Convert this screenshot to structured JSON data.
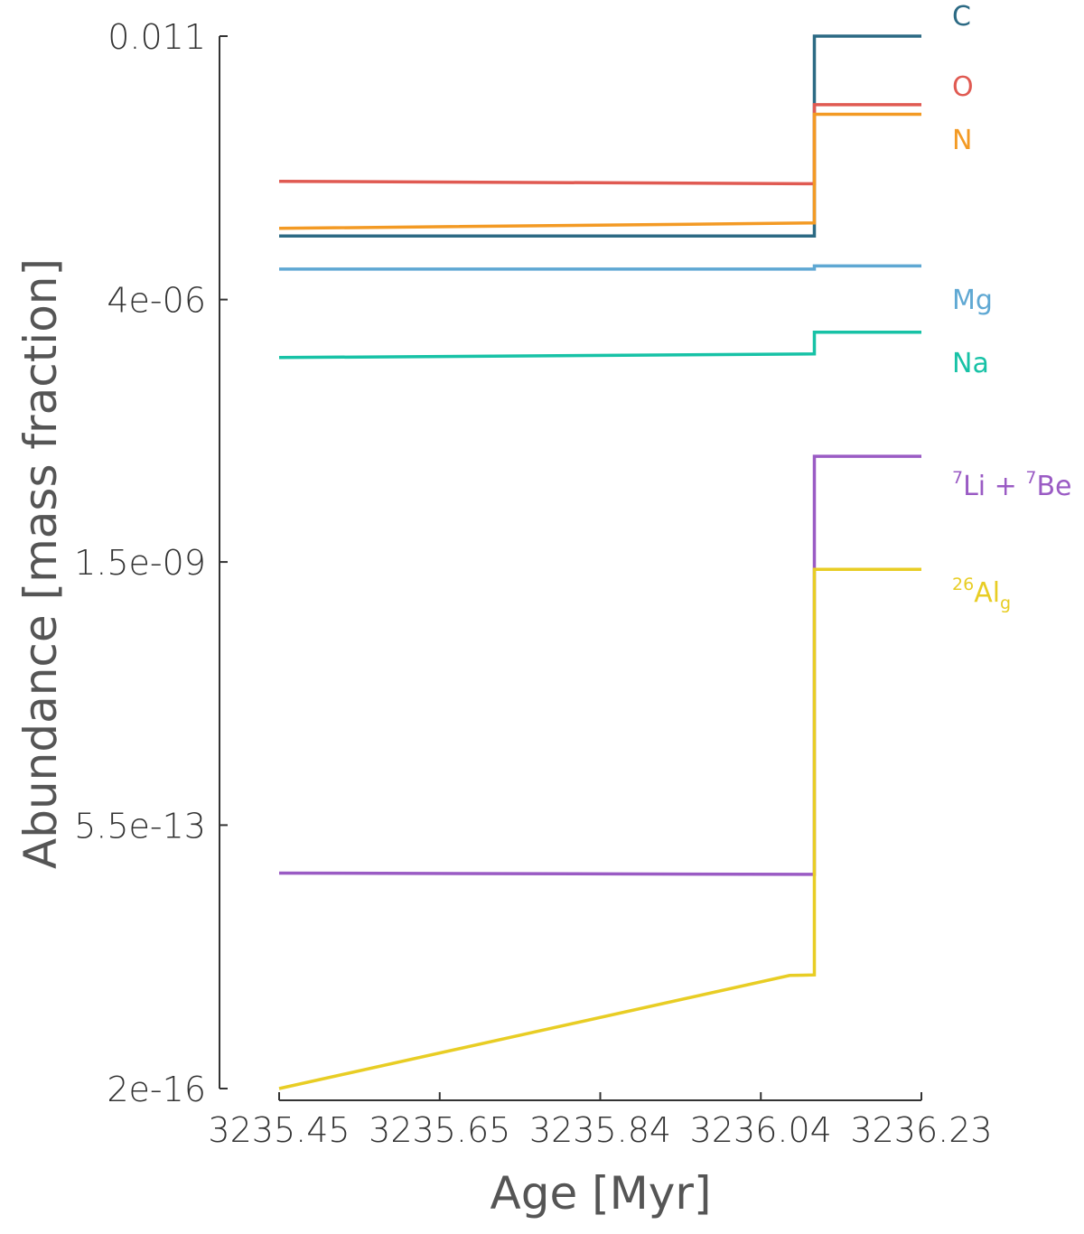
{
  "chart_data": {
    "type": "line",
    "xlabel": "Age [Myr]",
    "ylabel": "Abundance [mass fraction]",
    "yscale": "log",
    "xlim": [
      3235.45,
      3236.23
    ],
    "ylim": [
      2e-16,
      0.011
    ],
    "x_ticks": [
      "3235.45",
      "3235.65",
      "3235.84",
      "3236.04",
      "3236.23"
    ],
    "x_tick_values": [
      3235.45,
      3235.645,
      3235.84,
      3236.035,
      3236.23
    ],
    "y_ticks": [
      "0.011",
      "4e-06",
      "1.5e-09",
      "5.5e-13",
      "2e-16"
    ],
    "y_tick_values": [
      0.011,
      4e-06,
      1.5e-09,
      5.5e-13,
      2e-16
    ],
    "grid": false,
    "legend": "inline-right",
    "series": [
      {
        "name": "C",
        "color": "#2c6a84",
        "x": [
          3235.45,
          3236.1,
          3236.1,
          3236.23
        ],
        "y": [
          2.7e-05,
          2.7e-05,
          0.011,
          0.011
        ]
      },
      {
        "name": "O",
        "color": "#e05a52",
        "x": [
          3235.45,
          3236.1,
          3236.1,
          3236.23
        ],
        "y": [
          0.00014,
          0.00013,
          0.0014,
          0.0014
        ]
      },
      {
        "name": "N",
        "color": "#f39a24",
        "x": [
          3235.45,
          3236.1,
          3236.1,
          3236.23
        ],
        "y": [
          3.4e-05,
          4e-05,
          0.00105,
          0.00105
        ]
      },
      {
        "name": "Mg",
        "color": "#5fa8d3",
        "x": [
          3235.45,
          3236.1,
          3236.1,
          3236.23
        ],
        "y": [
          1e-05,
          1e-05,
          1.1e-05,
          1.1e-05
        ]
      },
      {
        "name": "Na",
        "color": "#17c2a6",
        "x": [
          3235.45,
          3236.1,
          3236.1,
          3236.23
        ],
        "y": [
          7e-07,
          7.8e-07,
          1.5e-06,
          1.5e-06
        ]
      },
      {
        "name": "7Li + 7Be",
        "color": "#9a5bc4",
        "x": [
          3235.45,
          3236.1,
          3236.1,
          3236.23
        ],
        "y": [
          1.3e-13,
          1.25e-13,
          3.6e-08,
          3.6e-08
        ]
      },
      {
        "name": "26Alg",
        "color": "#e8cd24",
        "x": [
          3235.45,
          3236.07,
          3236.1,
          3236.1,
          3236.23
        ],
        "y": [
          2e-16,
          6e-15,
          6.1e-15,
          1.2e-09,
          1.2e-09
        ]
      }
    ],
    "series_labels": [
      {
        "base": "C",
        "color": "#2c6a84"
      },
      {
        "base": "O",
        "color": "#e05a52"
      },
      {
        "base": "N",
        "color": "#f39a24"
      },
      {
        "base": "Mg",
        "color": "#5fa8d3"
      },
      {
        "base": "Na",
        "color": "#17c2a6"
      },
      {
        "sup1": "7",
        "base1": "Li + ",
        "sup2": "7",
        "base2": "Be",
        "color": "#9a5bc4"
      },
      {
        "sup1": "26",
        "base1": "Al",
        "sub": "g",
        "color": "#e8cd24"
      }
    ]
  }
}
